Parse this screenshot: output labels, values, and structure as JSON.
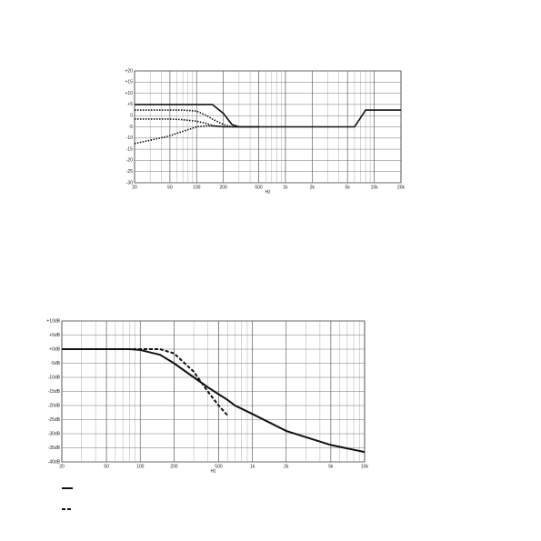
{
  "chart_data": [
    {
      "type": "line",
      "x_label": "Hz",
      "log_x": true,
      "grid": true,
      "xlim": [
        20,
        20000
      ],
      "xticks": [
        20,
        50,
        100,
        200,
        500,
        {
          "value": 1000,
          "label": "1k"
        },
        {
          "value": 2000,
          "label": "2k"
        },
        {
          "value": 5000,
          "label": "5k"
        },
        {
          "value": 10000,
          "label": "10k"
        },
        {
          "value": 20000,
          "label": "20k"
        }
      ],
      "ylim": [
        -30,
        20
      ],
      "yticks": [
        {
          "value": 20,
          "label": "+20"
        },
        {
          "value": 15,
          "label": "+15"
        },
        {
          "value": 10,
          "label": "+10"
        },
        {
          "value": 5,
          "label": "+5"
        },
        0,
        -5,
        -10,
        -15,
        -20,
        -25,
        -30
      ],
      "x": [
        20,
        30,
        50,
        70,
        100,
        130,
        150,
        200,
        250,
        300,
        500,
        1000,
        2000,
        5000,
        6000,
        7000,
        8000,
        10000,
        20000
      ],
      "series": [
        {
          "color": "#111111",
          "style": "solid",
          "values": [
            5,
            5,
            5,
            5,
            5,
            5,
            5,
            1,
            -4,
            -5,
            -5,
            -5,
            -5,
            -5,
            -5,
            -1,
            2.5,
            2.5,
            2.5
          ]
        },
        {
          "color": "#111111",
          "style": "dotted",
          "values": [
            2.5,
            2.5,
            2.5,
            2.5,
            2,
            0,
            -1.5,
            -4,
            -5,
            -5,
            -5,
            null,
            null,
            null,
            null,
            null,
            null,
            null,
            null
          ]
        },
        {
          "color": "#111111",
          "style": "dotted",
          "values": [
            -1.5,
            -1.5,
            -1.5,
            -1.8,
            -2.5,
            -3.5,
            -4.5,
            -5,
            -5,
            -5,
            -5,
            null,
            null,
            null,
            null,
            null,
            null,
            null,
            null
          ]
        },
        {
          "color": "#111111",
          "style": "dotted",
          "values": [
            -12.5,
            -11,
            -9,
            -7,
            -5,
            -4.5,
            -4.5,
            -5,
            -5,
            -5,
            -5,
            null,
            null,
            null,
            null,
            null,
            null,
            null,
            null
          ]
        }
      ]
    },
    {
      "type": "line",
      "x_label": "Hz",
      "log_x": true,
      "grid": true,
      "legend": "bottom-left",
      "xlim": [
        20,
        10000
      ],
      "xticks": [
        20,
        50,
        100,
        200,
        500,
        {
          "value": 1000,
          "label": "1k"
        },
        {
          "value": 2000,
          "label": "2k"
        },
        {
          "value": 5000,
          "label": "5k"
        },
        {
          "value": 10000,
          "label": "10k"
        }
      ],
      "ylim": [
        -40,
        10
      ],
      "yticks": [
        {
          "value": 10,
          "label": "+10dB"
        },
        {
          "value": 5,
          "label": "+5dB"
        },
        {
          "value": 0,
          "label": "+0dB"
        },
        {
          "value": -5,
          "label": "-5dB"
        },
        {
          "value": -10,
          "label": "-10dB"
        },
        {
          "value": -15,
          "label": "-15dB"
        },
        {
          "value": -20,
          "label": "-20dB"
        },
        {
          "value": -25,
          "label": "-25dB"
        },
        {
          "value": -30,
          "label": "-30dB"
        },
        {
          "value": -35,
          "label": "-35dB"
        },
        {
          "value": -40,
          "label": "-40dB"
        }
      ],
      "x": [
        20,
        50,
        80,
        100,
        150,
        200,
        300,
        400,
        500,
        600,
        700,
        1000,
        2000,
        5000,
        10000
      ],
      "series": [
        {
          "color": "#111111",
          "style": "solid",
          "values": [
            0,
            0,
            0,
            -0.3,
            -2,
            -5,
            -10,
            -13.5,
            -16,
            -18,
            -20,
            -23,
            -29,
            -34,
            -36.5
          ]
        },
        {
          "color": "#111111",
          "style": "dashed",
          "values": [
            0,
            0,
            0,
            0,
            0,
            -1.5,
            -8,
            -15,
            -20,
            -23.5,
            null,
            null,
            null,
            null,
            null
          ]
        }
      ]
    }
  ]
}
